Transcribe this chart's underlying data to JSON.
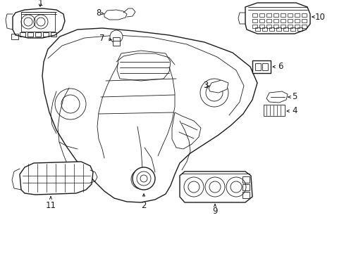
{
  "bg_color": "#ffffff",
  "line_color": "#1a1a1a",
  "lw_main": 1.0,
  "lw_thin": 0.6,
  "lw_thick": 1.3,
  "font_size": 8.5
}
